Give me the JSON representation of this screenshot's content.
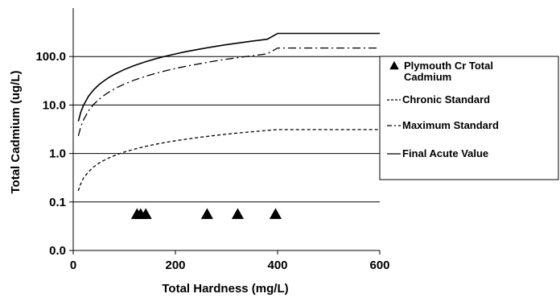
{
  "chart_data": {
    "type": "line",
    "xlabel": "Total Hardness (mg/L)",
    "ylabel": "Total Cadmium (ug/L)",
    "xlim": [
      0,
      600
    ],
    "y_scale": "log",
    "x_ticks": [
      0,
      200,
      400,
      600
    ],
    "y_ticks": [
      {
        "label": "0.0",
        "value": 0.01
      },
      {
        "label": "0.1",
        "value": 0.1
      },
      {
        "label": "1.0",
        "value": 1
      },
      {
        "label": "10.0",
        "value": 10
      },
      {
        "label": "100.0",
        "value": 100
      }
    ],
    "ylim_display": [
      0.01,
      1000
    ],
    "grid": "horizontal",
    "legend_position": "right",
    "series": [
      {
        "name": "Plymouth Cr Total Cadmium",
        "style": "triangle-markers",
        "x": [
          125,
          132,
          142,
          262,
          322,
          396
        ],
        "y": [
          0.055,
          0.055,
          0.055,
          0.055,
          0.055,
          0.055
        ]
      },
      {
        "name": "Chronic Standard",
        "style": "dashed",
        "x": [
          10,
          15,
          20,
          30,
          40,
          50,
          60,
          70,
          80,
          90,
          100,
          120,
          140,
          160,
          180,
          200,
          220,
          250,
          280,
          300,
          320,
          350,
          380,
          400,
          450,
          500,
          550,
          600
        ],
        "y": [
          0.17,
          0.24,
          0.31,
          0.42,
          0.53,
          0.63,
          0.72,
          0.81,
          0.9,
          0.99,
          1.07,
          1.23,
          1.39,
          1.54,
          1.69,
          1.83,
          1.97,
          2.17,
          2.37,
          2.5,
          2.63,
          2.81,
          3.0,
          3.12,
          3.12,
          3.12,
          3.12,
          3.12
        ]
      },
      {
        "name": "Maximum Standard",
        "style": "dash-dot",
        "x": [
          10,
          15,
          20,
          30,
          40,
          50,
          60,
          70,
          80,
          90,
          100,
          120,
          140,
          160,
          180,
          200,
          220,
          250,
          280,
          300,
          320,
          350,
          380,
          400,
          450,
          500,
          550,
          600
        ],
        "y": [
          2.3,
          3.6,
          4.9,
          7.6,
          10.3,
          13.0,
          15.7,
          18.5,
          21.3,
          24.1,
          27,
          32.8,
          38.6,
          44.6,
          50.6,
          56.7,
          62.8,
          72.1,
          81.5,
          88,
          94.2,
          104,
          114,
          150,
          150,
          150,
          150,
          150
        ]
      },
      {
        "name": "Final Acute Value",
        "style": "solid",
        "x": [
          10,
          15,
          20,
          30,
          40,
          50,
          60,
          70,
          80,
          90,
          100,
          120,
          140,
          160,
          180,
          200,
          220,
          250,
          280,
          300,
          320,
          350,
          380,
          400,
          450,
          500,
          550,
          600
        ],
        "y": [
          4.6,
          7.2,
          9.8,
          15.2,
          20.6,
          26,
          31.4,
          37,
          42.6,
          48.2,
          54,
          65.6,
          77.2,
          89.2,
          101,
          113,
          126,
          144,
          163,
          176,
          188,
          208,
          228,
          300,
          300,
          300,
          300,
          300
        ]
      }
    ]
  }
}
